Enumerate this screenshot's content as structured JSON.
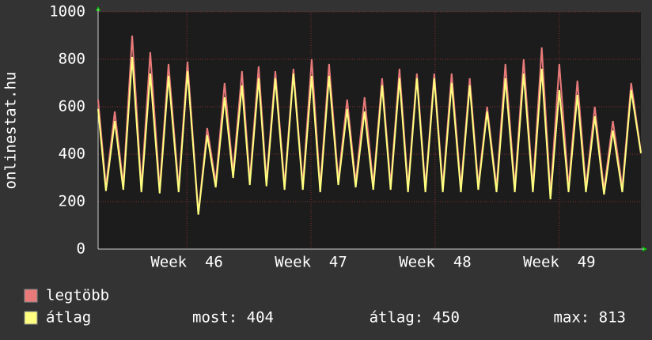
{
  "chart_data": {
    "type": "line",
    "y_label": "onlinestat.hu",
    "x": [
      0,
      0.44,
      0.94,
      1.42,
      1.92,
      2.44,
      2.94,
      3.47,
      3.97,
      4.54,
      5.04,
      5.65,
      6.15,
      6.63,
      7.13,
      7.61,
      8.11,
      8.55,
      9.05,
      9.49,
      9.99,
      10.51,
      11.01,
      11.54,
      12.04,
      12.52,
      13.02,
      13.54,
      14.04,
      14.52,
      15.02,
      15.51,
      16.01,
      16.49,
      16.99,
      17.47,
      17.97,
      18.45,
      18.95,
      19.43,
      19.93,
      20.45,
      20.95,
      21.43,
      21.93,
      22.46,
      22.96,
      23.49,
      23.99,
      24.51,
      25.01,
      25.5,
      26.0,
      26.52,
      27.02,
      27.5,
      28.0,
      28.52,
      29.02,
      29.55,
      30.05,
      30.6
    ],
    "series": [
      {
        "name": "legtöbb",
        "color": "#e87a7a",
        "values": [
          630,
          265,
          580,
          270,
          900,
          260,
          830,
          255,
          780,
          260,
          790,
          150,
          510,
          280,
          700,
          320,
          750,
          290,
          770,
          285,
          750,
          270,
          760,
          270,
          800,
          260,
          780,
          290,
          630,
          280,
          640,
          270,
          720,
          270,
          760,
          260,
          740,
          260,
          740,
          260,
          740,
          260,
          720,
          270,
          600,
          260,
          780,
          260,
          800,
          260,
          850,
          230,
          780,
          260,
          710,
          260,
          600,
          250,
          540,
          260,
          700,
          410
        ]
      },
      {
        "name": "átlag",
        "color": "#ffff80",
        "values": [
          590,
          245,
          540,
          250,
          810,
          240,
          740,
          235,
          730,
          240,
          750,
          145,
          480,
          260,
          640,
          300,
          690,
          270,
          720,
          265,
          720,
          250,
          740,
          250,
          730,
          240,
          730,
          270,
          590,
          260,
          580,
          250,
          690,
          250,
          720,
          240,
          720,
          240,
          720,
          240,
          700,
          240,
          690,
          250,
          580,
          240,
          720,
          240,
          740,
          240,
          760,
          210,
          670,
          240,
          650,
          240,
          560,
          230,
          500,
          240,
          670,
          404
        ]
      }
    ],
    "xlim": [
      0,
      30.6
    ],
    "xticks": [
      {
        "value": 5,
        "label": "Week  46"
      },
      {
        "value": 12,
        "label": "Week  47"
      },
      {
        "value": 19,
        "label": "Week  48"
      },
      {
        "value": 26,
        "label": "Week  49"
      }
    ],
    "ylim": [
      0,
      1000
    ],
    "yticks": [
      0,
      200,
      400,
      600,
      800,
      1000
    ],
    "grid": true,
    "stats": [
      "most: 404",
      "átlag: 450",
      "max: 813"
    ]
  }
}
